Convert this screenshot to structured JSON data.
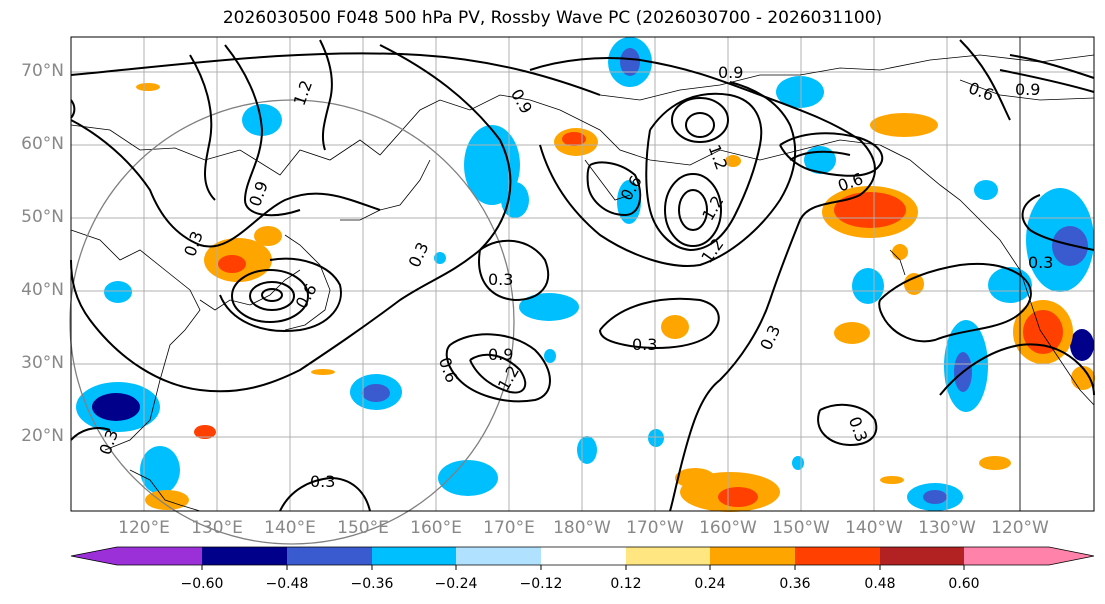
{
  "title": "2026030500 F048 500 hPa PV, Rossby Wave PC (2026030700 - 2026031100)",
  "lat_labels": [
    "70°N",
    "60°N",
    "50°N",
    "40°N",
    "30°N",
    "20°N"
  ],
  "lon_labels": [
    "120°E",
    "130°E",
    "140°E",
    "150°E",
    "160°E",
    "170°E",
    "180°W",
    "170°W",
    "160°W",
    "150°W",
    "140°W",
    "130°W",
    "120°W"
  ],
  "contour_labels": [
    "1.2",
    "0.9",
    "0.6",
    "0.3"
  ],
  "colorbar": {
    "tick_labels": [
      "−0.60",
      "−0.48",
      "−0.36",
      "−0.24",
      "−0.12",
      "0.12",
      "0.24",
      "0.36",
      "0.48",
      "0.60"
    ],
    "colors": [
      "#9b30d9",
      "#00008b",
      "#3a5bd0",
      "#00bfff",
      "#b0e2ff",
      "#ffffff",
      "#ffe680",
      "#ffa500",
      "#ff4000",
      "#b22222",
      "#ff82ab"
    ]
  }
}
